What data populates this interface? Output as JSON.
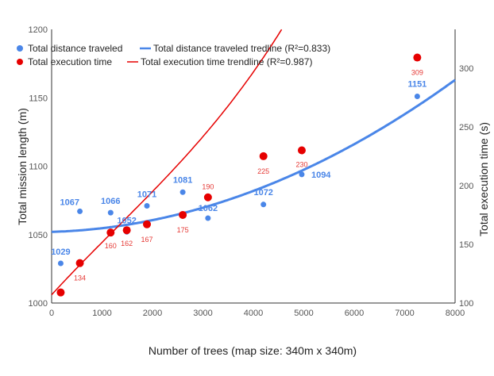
{
  "chart_data": {
    "type": "scatter",
    "title": "",
    "xlabel": "Number of trees (map size: 340m x 340m)",
    "ylabel_left": "Total mission length (m)",
    "ylabel_right": "Total execution time (s)",
    "xlim": [
      0,
      8000
    ],
    "ylim_left": [
      1000,
      1200
    ],
    "ylim_right": [
      100,
      333
    ],
    "x_ticks": [
      "0",
      "1000",
      "2000",
      "3000",
      "4000",
      "5000",
      "6000",
      "7000",
      "8000"
    ],
    "y_left_ticks": [
      "1000",
      "1050",
      "1100",
      "1150",
      "1200"
    ],
    "y_right_ticks": [
      "100",
      "150",
      "200",
      "250",
      "300"
    ],
    "grid": false,
    "legend_position": "top-left",
    "legend": [
      {
        "label": "Total distance traveled",
        "kind": "marker",
        "color": "#4a86e8"
      },
      {
        "label": "Total distance traveled tredline (R²=0.833)",
        "kind": "line",
        "color": "#4a86e8"
      },
      {
        "label": "Total execution time",
        "kind": "marker",
        "color": "#e60000"
      },
      {
        "label": "Total execution time trendline (R²=0.987)",
        "kind": "line",
        "color": "#e60000"
      }
    ],
    "series": [
      {
        "name": "Total distance traveled",
        "axis": "left",
        "color": "#4a86e8",
        "points": [
          {
            "x": 180,
            "y": 1029,
            "label": "1029"
          },
          {
            "x": 560,
            "y": 1067,
            "label": "1067"
          },
          {
            "x": 1170,
            "y": 1066,
            "label": "1066"
          },
          {
            "x": 1490,
            "y": 1052,
            "label": "1052"
          },
          {
            "x": 1890,
            "y": 1071,
            "label": "1071"
          },
          {
            "x": 2600,
            "y": 1081,
            "label": "1081"
          },
          {
            "x": 3100,
            "y": 1062,
            "label": "1062"
          },
          {
            "x": 4200,
            "y": 1072,
            "label": "1072"
          },
          {
            "x": 4960,
            "y": 1094,
            "label": "1094"
          },
          {
            "x": 7250,
            "y": 1151,
            "label": "1151"
          }
        ]
      },
      {
        "name": "Total execution time",
        "axis": "right",
        "color": "#e60000",
        "points": [
          {
            "x": 180,
            "y": 109,
            "label": ""
          },
          {
            "x": 560,
            "y": 134,
            "label": "134"
          },
          {
            "x": 1170,
            "y": 160,
            "label": "160"
          },
          {
            "x": 1490,
            "y": 162,
            "label": "162"
          },
          {
            "x": 1890,
            "y": 167,
            "label": "167"
          },
          {
            "x": 2600,
            "y": 175,
            "label": "175"
          },
          {
            "x": 3100,
            "y": 190,
            "label": "190"
          },
          {
            "x": 4200,
            "y": 225,
            "label": "225"
          },
          {
            "x": 4960,
            "y": 230,
            "label": "230"
          },
          {
            "x": 7250,
            "y": 309,
            "label": "309"
          }
        ]
      }
    ],
    "trendlines": [
      {
        "name": "Total distance traveled tredline (R²=0.833)",
        "axis": "left",
        "color": "#4a86e8",
        "coefficients": [
          1052,
          0.00108,
          1.6e-06
        ]
      },
      {
        "name": "Total execution time trendline (R²=0.987)",
        "axis": "right",
        "color": "#e60000",
        "coefficients": [
          107,
          0.0469,
          -3.07e-06,
          8e-10
        ]
      }
    ]
  }
}
